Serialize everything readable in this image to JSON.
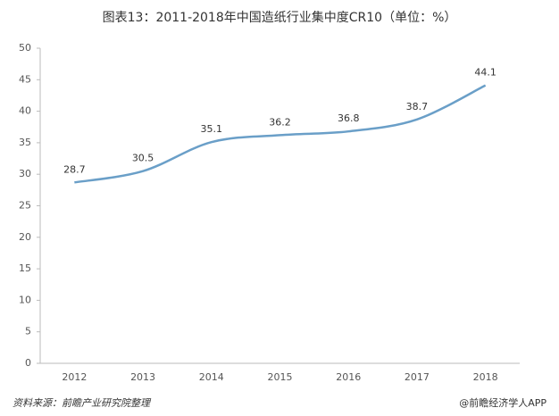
{
  "chart_data": {
    "type": "line",
    "title": "图表13：2011-2018年中国造纸行业集中度CR10（单位：%）",
    "categories": [
      "2012",
      "2013",
      "2014",
      "2015",
      "2016",
      "2017",
      "2018"
    ],
    "values": [
      28.7,
      30.5,
      35.1,
      36.2,
      36.8,
      38.7,
      44.1
    ],
    "color": "#6a9fc8",
    "ylim": [
      0,
      50
    ],
    "yticks": [
      0,
      5,
      10,
      15,
      20,
      25,
      30,
      35,
      40,
      45,
      50
    ],
    "grid": false,
    "source": "资料来源：前瞻产业研究院整理",
    "credit": "@前瞻经济学人APP"
  }
}
